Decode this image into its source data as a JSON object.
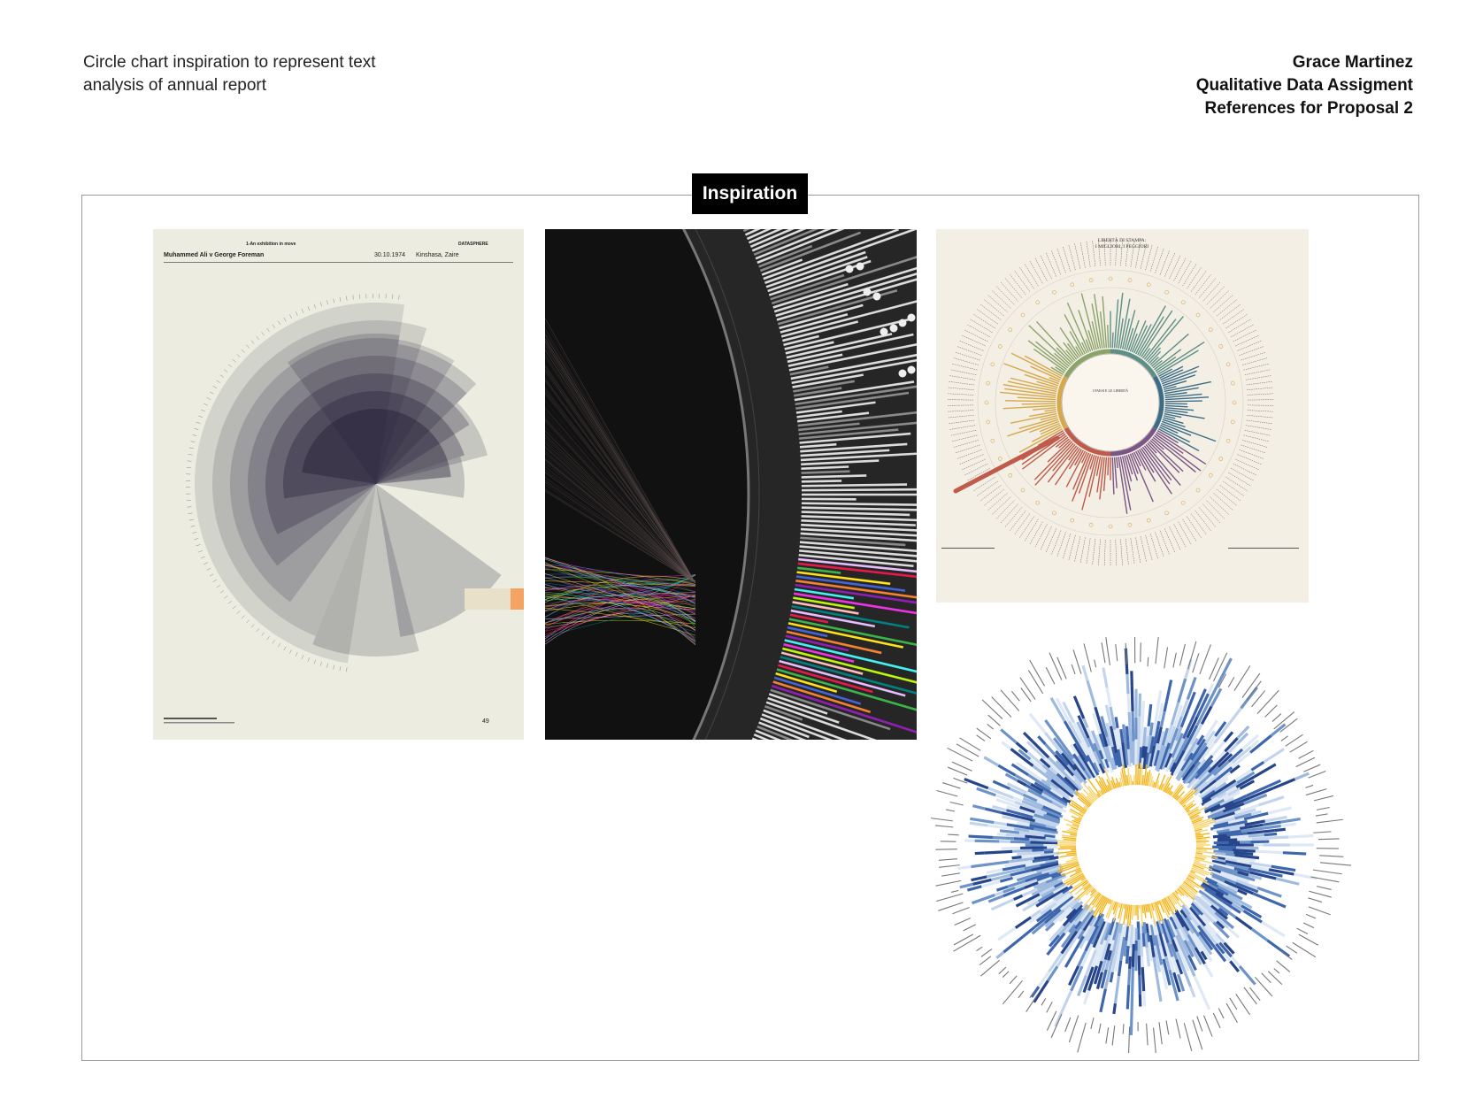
{
  "header": {
    "description_lines": [
      "Circle chart inspiration to represent text",
      "analysis of annual report"
    ],
    "author": "Grace Martinez",
    "assignment": "Qualitative Data Assigment",
    "subtitle": "References for Proposal 2"
  },
  "section_label": "Inspiration",
  "images": {
    "poster": {
      "top_left": "Muhammed Ali v George Foreman",
      "date": "30.10.1974",
      "place": "Kinshasa, Zaire",
      "series": "1-An exhibition in move",
      "brand": "DATASPHERE",
      "page_number": "49"
    },
    "liberty_chart": {
      "title_line1": "LIBERTÀ DI STAMPA:",
      "title_line2": "I MIGLIORI, I PEGGIORI",
      "center_title": "I PAESI E LE LIBERTÀ"
    }
  },
  "colors": {
    "poster_bg": "#ecede0",
    "dark_bg": "#262626",
    "liberty_bg": "#f4efe4",
    "accent_orange": "#f4a460"
  }
}
